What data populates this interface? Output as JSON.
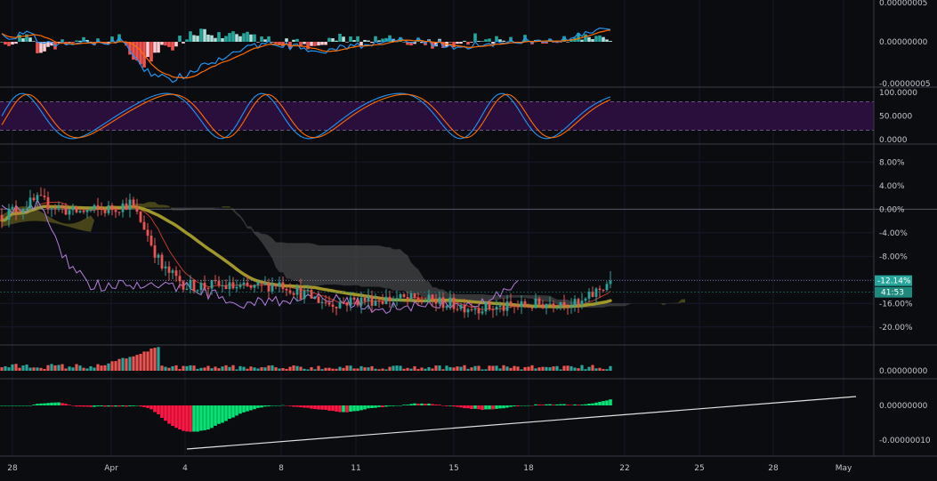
{
  "chart_data": [
    {
      "panel": "macd",
      "type": "line",
      "series": [],
      "histogram_colors": {
        "pos_strong": "#26a69a",
        "pos_weak": "#b2dfdb",
        "neg_strong": "#ef5350",
        "neg_weak": "#ffcdd2"
      },
      "line_colors": {
        "macd": "#2196f3",
        "signal": "#ff6d00"
      },
      "y_tick_labels": [
        "0.00000005",
        "0.00000000",
        "-0.00000005"
      ]
    },
    {
      "panel": "stochastic-rsi",
      "type": "line",
      "band_color": "#2a0f3d",
      "line_colors": {
        "k": "#2196f3",
        "d": "#ff6d00"
      },
      "y_tick_labels": [
        "100.0000",
        "50.0000",
        "0.0000"
      ],
      "ylim": [
        0,
        100
      ],
      "band": [
        20,
        80
      ]
    },
    {
      "panel": "price",
      "type": "candlestick",
      "y_unit": "%",
      "y_tick_labels": [
        "8.00%",
        "4.00%",
        "0.00%",
        "-4.00%",
        "-8.00%",
        "-12.00%",
        "-16.00%",
        "-20.00%"
      ],
      "ylim": [
        -22,
        10
      ],
      "last_value_label": "-12.14%",
      "countdown_label": "41:53",
      "colors": {
        "up": "#26a69a",
        "down": "#ef5350",
        "ma_thick": "#a0972a",
        "ma_thin": "#c0392b",
        "lagging": "#b57edc",
        "cloud": "#5a5a5a",
        "cloud_bull": "#7a7320",
        "tag": "#26a69a"
      }
    },
    {
      "panel": "volume",
      "type": "bar",
      "y_tick_labels": [
        "0.00000000"
      ],
      "colors": {
        "up": "#26a69a",
        "down": "#ef5350"
      }
    },
    {
      "panel": "awesome-oscillator",
      "type": "bar",
      "y_tick_labels": [
        "0.00000000",
        "-0.00000010"
      ],
      "colors": {
        "up": "#00e676",
        "down": "#ff1744",
        "trendline": "#e0e0e0"
      }
    }
  ],
  "x_axis": {
    "tick_labels": [
      "28",
      "Apr",
      "4",
      "8",
      "11",
      "15",
      "18",
      "22",
      "25",
      "28",
      "May"
    ]
  }
}
